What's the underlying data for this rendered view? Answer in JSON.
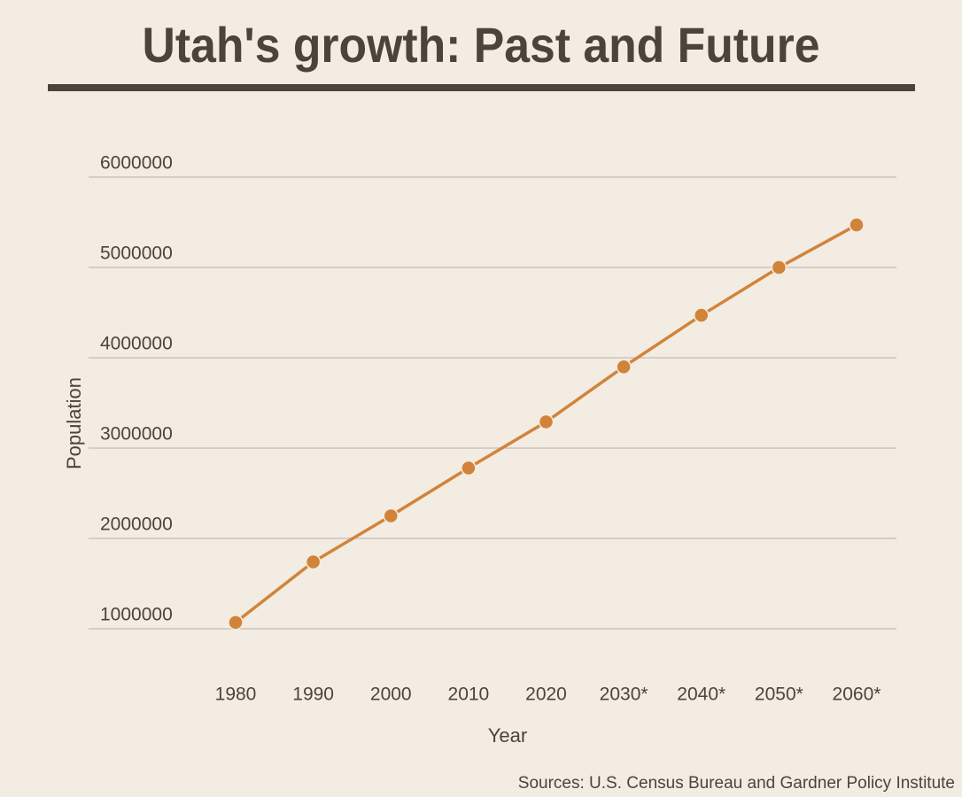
{
  "chart_data": {
    "type": "line",
    "title": "Utah's growth: Past and Future",
    "x_label": "Year",
    "y_label": "Population",
    "source": "Sources: U.S. Census Bureau and Gardner Policy Institute",
    "categories": [
      "1980",
      "1990",
      "2000",
      "2010",
      "2020",
      "2030*",
      "2040*",
      "2050*",
      "2060*"
    ],
    "series": [
      {
        "name": "Population",
        "color": "#d2833a",
        "values": [
          1070000,
          1740000,
          2250000,
          2780000,
          3290000,
          3900000,
          4470000,
          5000000,
          5470000
        ]
      }
    ],
    "ylim": [
      1000000,
      6000000
    ],
    "yticks": [
      1000000,
      2000000,
      3000000,
      4000000,
      5000000,
      6000000
    ],
    "grid": true
  }
}
